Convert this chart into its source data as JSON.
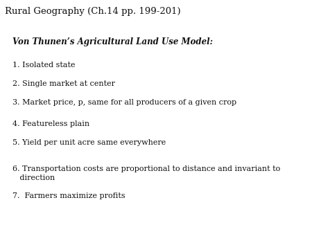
{
  "header_text": "Rural Geography (Ch.14 pp. 199-201)",
  "header_bg": "#ffffa0",
  "header_border": "#1a1a6e",
  "title_text": "Von Thunen’s Agricultural Land Use Model:",
  "body_bg": "#ffffff",
  "items": [
    "1. Isolated state",
    "2. Single market at center",
    "3. Market price, p, same for all producers of a given crop",
    "4. Featureless plain",
    "5. Yield per unit acre same everywhere",
    "6. Transportation costs are proportional to distance and invariant to\n   direction",
    "7.  Farmers maximize profits"
  ],
  "header_fontsize": 9.5,
  "title_fontsize": 8.5,
  "item_fontsize": 8.0,
  "fig_width": 4.5,
  "fig_height": 3.38,
  "dpi": 100
}
